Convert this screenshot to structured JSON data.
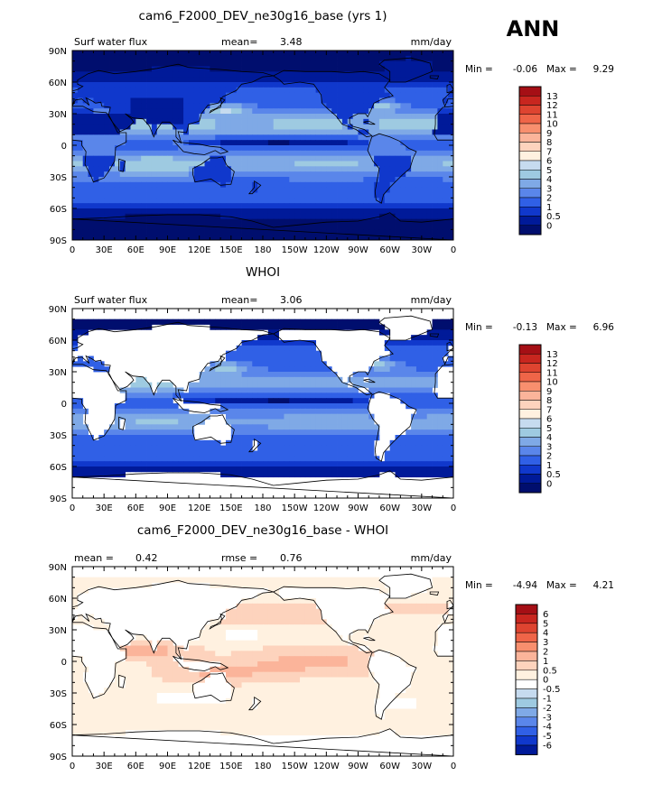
{
  "season": "ANN",
  "chart_data": [
    {
      "type": "heatmap",
      "title": "cam6_F2000_DEV_ne30g16_base (yrs 1)",
      "left_label": "Surf water flux",
      "stat_label": "mean=",
      "stat_value": "3.48",
      "units": "mm/day",
      "min_label": "Min =",
      "min_value": "-0.06",
      "max_label": "Max =",
      "max_value": "9.29",
      "map_kind": "model",
      "colorbar": {
        "labels": [
          "13",
          "12",
          "11",
          "10",
          "9",
          "8",
          "7",
          "6",
          "5",
          "4",
          "3",
          "2",
          "1",
          "0.5",
          "0"
        ],
        "colors": [
          "#a50f15",
          "#c8261f",
          "#de4430",
          "#ef6548",
          "#f88f6e",
          "#fbb49a",
          "#fdd3bd",
          "#fff1e0",
          "#c6dbef",
          "#9ecae1",
          "#7fa9e6",
          "#5a86ea",
          "#3060e6",
          "#1038cc",
          "#001a99",
          "#000e6e"
        ]
      },
      "x_ticks": [
        "0",
        "30E",
        "60E",
        "90E",
        "120E",
        "150E",
        "180",
        "150W",
        "120W",
        "90W",
        "60W",
        "30W",
        "0"
      ],
      "y_ticks": [
        "90N",
        "60N",
        "30N",
        "0",
        "30S",
        "60S",
        "90S"
      ]
    },
    {
      "type": "heatmap",
      "title": "WHOI",
      "left_label": "Surf water flux",
      "stat_label": "mean=",
      "stat_value": "3.06",
      "units": "mm/day",
      "min_label": "Min =",
      "min_value": "-0.13",
      "max_label": "Max =",
      "max_value": "6.96",
      "map_kind": "obs",
      "colorbar": {
        "labels": [
          "13",
          "12",
          "11",
          "10",
          "9",
          "8",
          "7",
          "6",
          "5",
          "4",
          "3",
          "2",
          "1",
          "0.5",
          "0"
        ],
        "colors": [
          "#a50f15",
          "#c8261f",
          "#de4430",
          "#ef6548",
          "#f88f6e",
          "#fbb49a",
          "#fdd3bd",
          "#fff1e0",
          "#c6dbef",
          "#9ecae1",
          "#7fa9e6",
          "#5a86ea",
          "#3060e6",
          "#1038cc",
          "#001a99",
          "#000e6e"
        ]
      },
      "x_ticks": [
        "0",
        "30E",
        "60E",
        "90E",
        "120E",
        "150E",
        "180",
        "150W",
        "120W",
        "90W",
        "60W",
        "30W",
        "0"
      ],
      "y_ticks": [
        "90N",
        "60N",
        "30N",
        "0",
        "30S",
        "60S",
        "90S"
      ]
    },
    {
      "type": "heatmap",
      "title": "cam6_F2000_DEV_ne30g16_base - WHOI",
      "left_label": "mean =",
      "left_value": "0.42",
      "stat_label": "rmse =",
      "stat_value": "0.76",
      "units": "mm/day",
      "min_label": "Min =",
      "min_value": "-4.94",
      "max_label": "Max =",
      "max_value": "4.21",
      "map_kind": "diff",
      "colorbar": {
        "labels": [
          "6",
          "5",
          "4",
          "3",
          "2",
          "1",
          "0.5",
          "0",
          "-0.5",
          "-1",
          "-2",
          "-3",
          "-4",
          "-5",
          "-6"
        ],
        "colors": [
          "#a50f15",
          "#c8261f",
          "#de4430",
          "#ef6548",
          "#f88f6e",
          "#fbb49a",
          "#fdd3bd",
          "#fff1e0",
          "#ffffff",
          "#c6dbef",
          "#9ecae1",
          "#7fa9e6",
          "#5a86ea",
          "#3060e6",
          "#1038cc",
          "#001a99"
        ]
      },
      "x_ticks": [
        "0",
        "30E",
        "60E",
        "90E",
        "120E",
        "150E",
        "180",
        "150W",
        "120W",
        "90W",
        "60W",
        "30W",
        "0"
      ],
      "y_ticks": [
        "90N",
        "60N",
        "30N",
        "0",
        "30S",
        "60S",
        "90S"
      ]
    }
  ]
}
